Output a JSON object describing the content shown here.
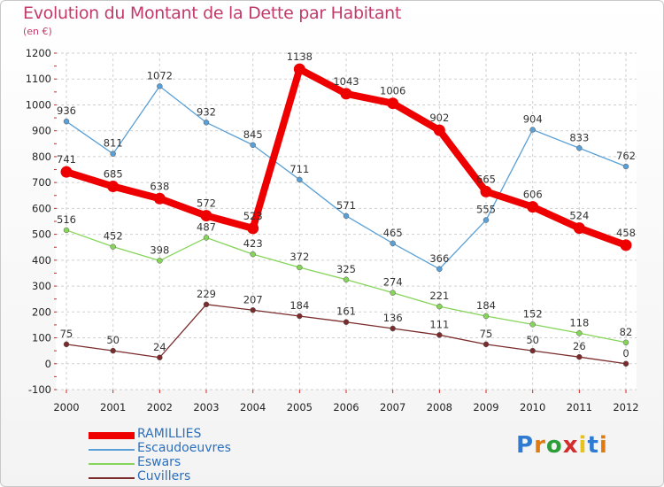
{
  "title": "Evolution du Montant de la Dette par Habitant",
  "subtitle": "(en €)",
  "logo": {
    "letters": [
      "P",
      "r",
      "o",
      "x",
      "i",
      "t",
      "i"
    ],
    "colors": [
      "#2e7bd1",
      "#e07b12",
      "#2e9e3a",
      "#d42c2c",
      "#e6c21a",
      "#2e7bd1",
      "#e07b12"
    ]
  },
  "chart_data": {
    "type": "line",
    "x": [
      "2000",
      "2001",
      "2002",
      "2003",
      "2004",
      "2005",
      "2006",
      "2007",
      "2008",
      "2009",
      "2010",
      "2011",
      "2012"
    ],
    "yticks": [
      "-100",
      "0",
      "100",
      "200",
      "300",
      "400",
      "500",
      "600",
      "700",
      "800",
      "900",
      "1000",
      "1100",
      "1200"
    ],
    "ylim": [
      -100,
      1200
    ],
    "grid": true,
    "legend_position": "bottom-left",
    "series": [
      {
        "name": "RAMILLIES",
        "color": "#ee0000",
        "values": [
          741,
          685,
          638,
          572,
          523,
          1138,
          1043,
          1006,
          902,
          665,
          606,
          524,
          458
        ],
        "labels": [
          "741",
          "685",
          "638",
          "572",
          "523",
          "1138",
          "1043",
          "1006",
          "902",
          "665",
          "606",
          "524",
          "458"
        ]
      },
      {
        "name": "Escaudoeuvres",
        "color": "#5aa0d6",
        "values": [
          936,
          811,
          1072,
          932,
          845,
          711,
          571,
          465,
          366,
          555,
          904,
          833,
          762
        ],
        "labels": [
          "936",
          "811",
          "1072",
          "932",
          "845",
          "711",
          "571",
          "465",
          "366",
          "555",
          "904",
          "833",
          "762"
        ]
      },
      {
        "name": "Eswars",
        "color": "#86d45a",
        "values": [
          516,
          452,
          398,
          487,
          423,
          372,
          325,
          274,
          221,
          184,
          152,
          118,
          82
        ],
        "labels": [
          "516",
          "452",
          "398",
          "487",
          "423",
          "372",
          "325",
          "274",
          "221",
          "184",
          "152",
          "118",
          "82"
        ]
      },
      {
        "name": "Cuvillers",
        "color": "#7a2b2b",
        "values": [
          75,
          50,
          24,
          229,
          207,
          184,
          161,
          136,
          111,
          75,
          50,
          26,
          0
        ],
        "labels": [
          "75",
          "50",
          "24",
          "229",
          "207",
          "184",
          "161",
          "136",
          "111",
          "75",
          "50",
          "26",
          "0"
        ]
      }
    ]
  }
}
